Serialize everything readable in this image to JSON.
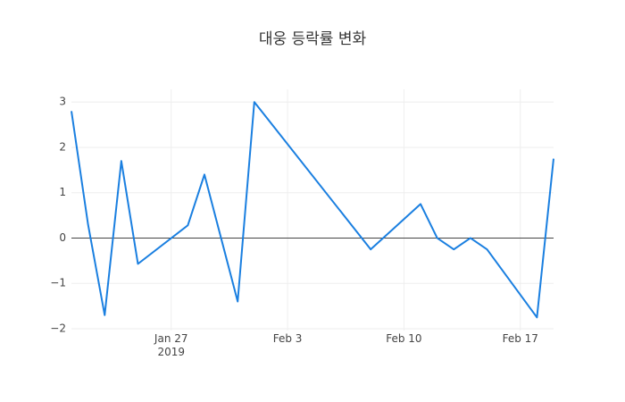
{
  "chart_data": {
    "type": "line",
    "title": "대웅 등락률 변화",
    "x": [
      "2019-01-21",
      "2019-01-22",
      "2019-01-23",
      "2019-01-24",
      "2019-01-25",
      "2019-01-28",
      "2019-01-29",
      "2019-01-31",
      "2019-02-01",
      "2019-02-08",
      "2019-02-11",
      "2019-02-12",
      "2019-02-13",
      "2019-02-14",
      "2019-02-15",
      "2019-02-18",
      "2019-02-19"
    ],
    "series": [
      {
        "name": "등락률",
        "color": "#1a7fe0",
        "values": [
          2.8,
          0.3,
          -1.7,
          1.7,
          -0.57,
          0.28,
          1.4,
          -1.4,
          3.0,
          -0.25,
          0.75,
          0.0,
          -0.25,
          0.0,
          -0.25,
          -1.75,
          1.75
        ]
      }
    ],
    "xlim": [
      "2019-01-21",
      "2019-02-19"
    ],
    "xticks": [
      {
        "value": "2019-01-27",
        "label": "Jan 27\n2019"
      },
      {
        "value": "2019-02-03",
        "label": "Feb 3"
      },
      {
        "value": "2019-02-10",
        "label": "Feb 10"
      },
      {
        "value": "2019-02-17",
        "label": "Feb 17"
      }
    ],
    "ylim": [
      -2.04,
      3.28
    ],
    "yticks": [
      {
        "value": -2,
        "label": "−2"
      },
      {
        "value": -1,
        "label": "−1"
      },
      0,
      1,
      2,
      3
    ],
    "grid": true,
    "zeroline": true
  }
}
